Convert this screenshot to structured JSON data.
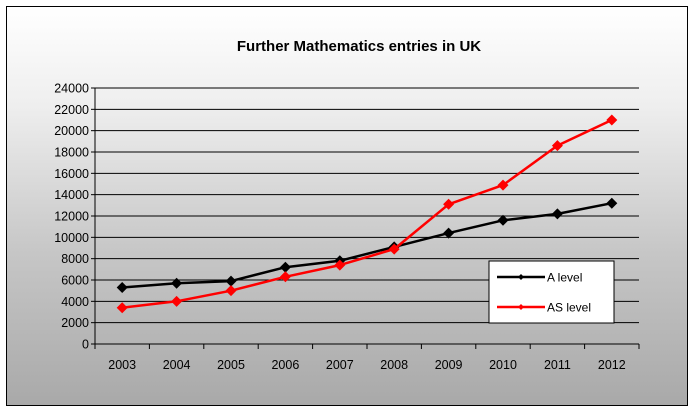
{
  "chart_data": {
    "type": "line",
    "title": "Further Mathematics entries in UK",
    "xlabel": "",
    "ylabel": "",
    "categories": [
      "2003",
      "2004",
      "2005",
      "2006",
      "2007",
      "2008",
      "2009",
      "2010",
      "2011",
      "2012"
    ],
    "ylim": [
      0,
      24000
    ],
    "yticks": [
      "0",
      "2000",
      "4000",
      "6000",
      "8000",
      "10000",
      "12000",
      "14000",
      "16000",
      "18000",
      "20000",
      "22000",
      "24000"
    ],
    "grid": true,
    "legend_position": "bottom-right",
    "series": [
      {
        "name": "A level",
        "color": "#000000",
        "marker": "diamond",
        "values": [
          5300,
          5700,
          5900,
          7200,
          7800,
          9100,
          10400,
          11600,
          12200,
          13200
        ]
      },
      {
        "name": "AS level",
        "color": "#ff0000",
        "marker": "diamond",
        "values": [
          3400,
          4000,
          5000,
          6300,
          7400,
          8900,
          13100,
          14900,
          18600,
          21000
        ]
      }
    ]
  }
}
